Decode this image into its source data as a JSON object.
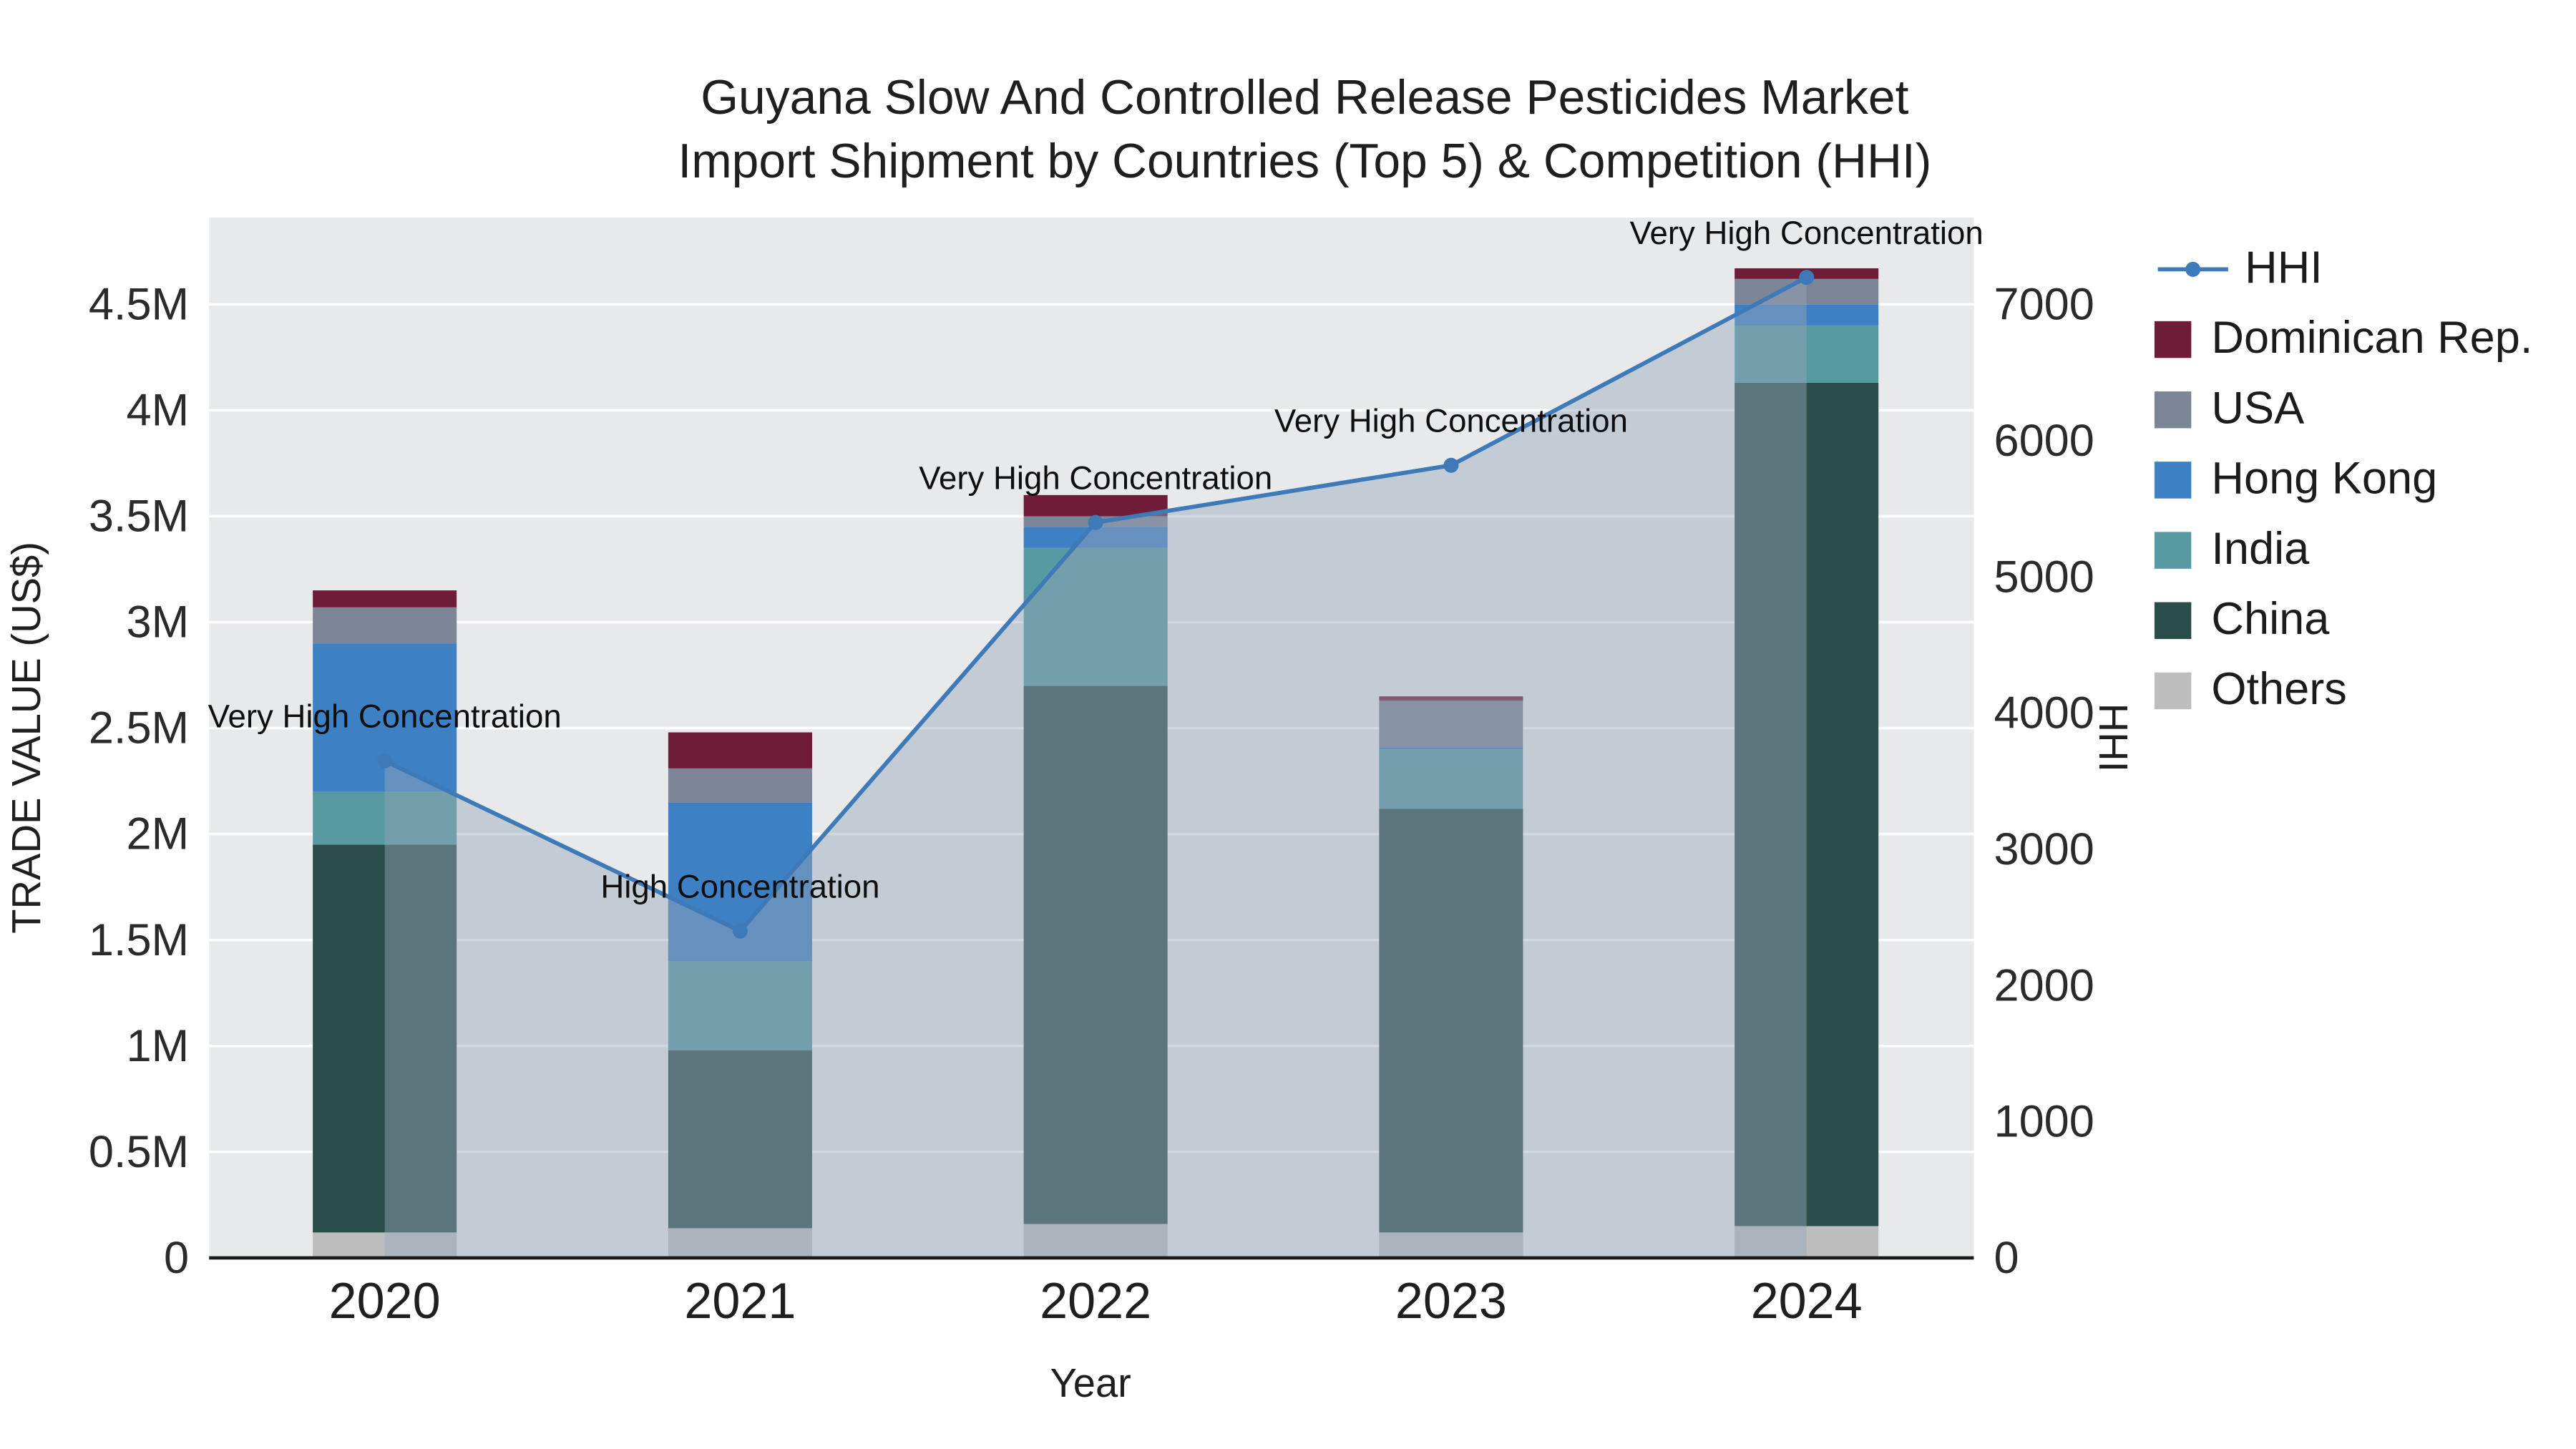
{
  "title": {
    "line1": "Guyana Slow And Controlled Release Pesticides Market",
    "line2": "Import Shipment by Countries (Top 5) & Competition (HHI)"
  },
  "axes": {
    "x_label": "Year",
    "y_left_label": "TRADE VALUE (US$)",
    "y_right_label": "HHI",
    "y_left_ticks": [
      {
        "value": 0,
        "label": "0"
      },
      {
        "value": 0.5,
        "label": "0.5M"
      },
      {
        "value": 1,
        "label": "1M"
      },
      {
        "value": 1.5,
        "label": "1.5M"
      },
      {
        "value": 2,
        "label": "2M"
      },
      {
        "value": 2.5,
        "label": "2.5M"
      },
      {
        "value": 3,
        "label": "3M"
      },
      {
        "value": 3.5,
        "label": "3.5M"
      },
      {
        "value": 4,
        "label": "4M"
      },
      {
        "value": 4.5,
        "label": "4.5M"
      }
    ],
    "y_right_ticks": [
      {
        "value": 0,
        "label": "0"
      },
      {
        "value": 1000,
        "label": "1000"
      },
      {
        "value": 2000,
        "label": "2000"
      },
      {
        "value": 3000,
        "label": "3000"
      },
      {
        "value": 4000,
        "label": "4000"
      },
      {
        "value": 5000,
        "label": "5000"
      },
      {
        "value": 6000,
        "label": "6000"
      },
      {
        "value": 7000,
        "label": "7000"
      }
    ]
  },
  "chart_data": {
    "type": "bar",
    "subtype": "stacked-bar-with-line",
    "unit_left": "million US$",
    "unit_right": "HHI index",
    "categories": [
      "2020",
      "2021",
      "2022",
      "2023",
      "2024"
    ],
    "stack_series": [
      {
        "name": "Others",
        "color": "#bdbdbd",
        "values": [
          0.12,
          0.14,
          0.16,
          0.12,
          0.15
        ]
      },
      {
        "name": "China",
        "color": "#2a4d49",
        "values": [
          1.83,
          0.84,
          2.54,
          2.0,
          3.98
        ]
      },
      {
        "name": "India",
        "color": "#579aa1",
        "values": [
          0.25,
          0.42,
          0.65,
          0.28,
          0.27
        ]
      },
      {
        "name": "Hong Kong",
        "color": "#3e80c4",
        "values": [
          0.7,
          0.75,
          0.1,
          0.01,
          0.1
        ]
      },
      {
        "name": "USA",
        "color": "#7d8696",
        "values": [
          0.17,
          0.16,
          0.05,
          0.22,
          0.12
        ]
      },
      {
        "name": "Dominican Rep.",
        "color": "#6e1c38",
        "values": [
          0.08,
          0.17,
          0.1,
          0.02,
          0.05
        ]
      }
    ],
    "line_series": {
      "name": "HHI",
      "color": "#3f7ab8",
      "area_fill": "rgba(151,166,187,0.45)",
      "values": [
        3650,
        2400,
        5400,
        5820,
        7200
      ]
    },
    "annotations": [
      "Very High Concentration",
      "High Concentration",
      "Very High Concentration",
      "Very High Concentration",
      "Very High Concentration"
    ],
    "ylim_left": [
      0,
      4.91
    ],
    "ylim_right": [
      0,
      7640
    ],
    "grid": true,
    "legend_position": "right"
  },
  "legend": {
    "items": [
      {
        "label": "HHI",
        "color": "#3f7ab8",
        "type": "line"
      },
      {
        "label": "Dominican Rep.",
        "color": "#6e1c38",
        "type": "square"
      },
      {
        "label": "USA",
        "color": "#7d8696",
        "type": "square"
      },
      {
        "label": "Hong Kong",
        "color": "#3e80c4",
        "type": "square"
      },
      {
        "label": "India",
        "color": "#579aa1",
        "type": "square"
      },
      {
        "label": "China",
        "color": "#2a4d49",
        "type": "square"
      },
      {
        "label": "Others",
        "color": "#bdbdbd",
        "type": "square"
      }
    ]
  },
  "style": {
    "plot_bg": "#e8e9eb",
    "grid_color": "#ffffff",
    "axis_color": "#1a1a1a",
    "tick_color": "#2b2b2b",
    "annotation_color": "#0f0f0f"
  }
}
